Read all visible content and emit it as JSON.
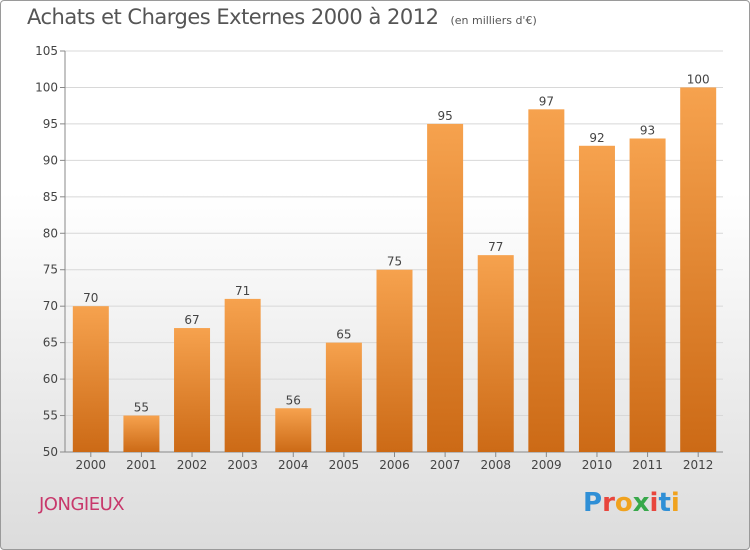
{
  "title": "Achats et Charges Externes 2000 à 2012",
  "unit_note": "(en milliers d'€)",
  "commune": "JONGIEUX",
  "logo_text": "Proxiti",
  "colors": {
    "bar_light": "#f6a24e",
    "bar_dark": "#cc6a16",
    "commune": "#c8386b"
  },
  "chart_data": {
    "type": "bar",
    "title": "Achats et Charges Externes 2000 à 2012",
    "categories": [
      "2000",
      "2001",
      "2002",
      "2003",
      "2004",
      "2005",
      "2006",
      "2007",
      "2008",
      "2009",
      "2010",
      "2011",
      "2012"
    ],
    "values": [
      70,
      55,
      67,
      71,
      56,
      65,
      75,
      95,
      77,
      97,
      92,
      93,
      100
    ],
    "ylim": [
      50,
      105
    ],
    "yticks": [
      50,
      55,
      60,
      65,
      70,
      75,
      80,
      85,
      90,
      95,
      100,
      105
    ],
    "grid": true,
    "data_labels": true
  }
}
